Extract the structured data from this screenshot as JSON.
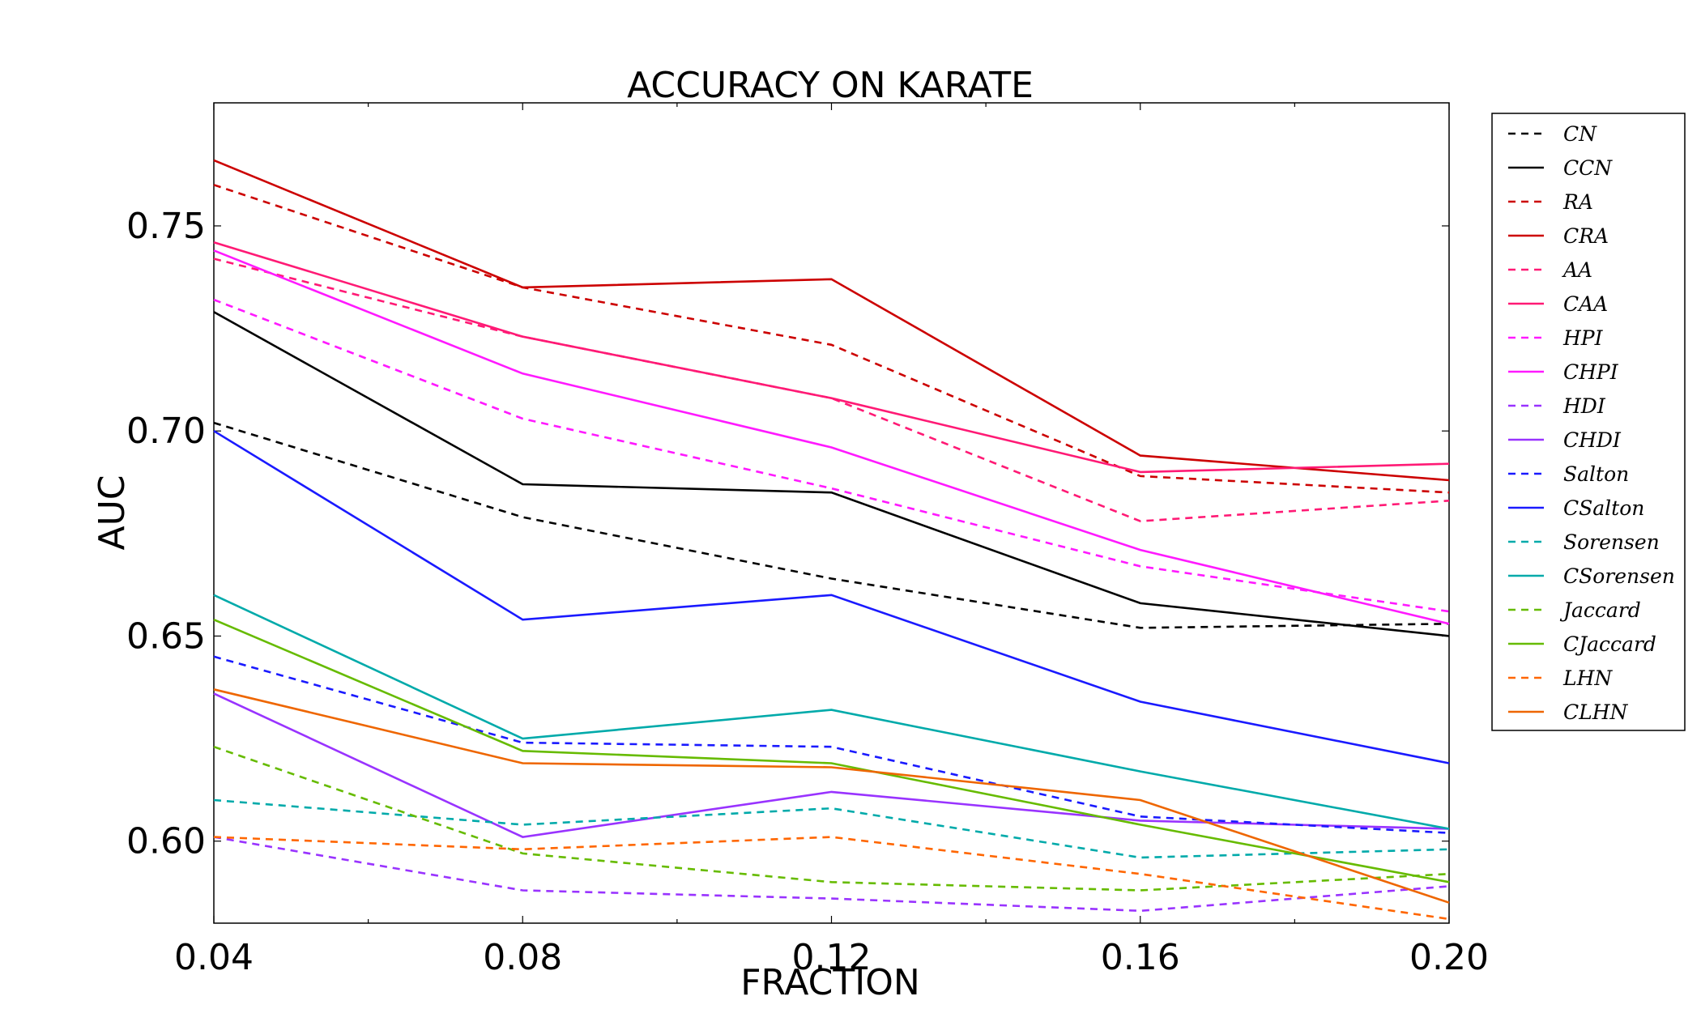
{
  "chart_data": {
    "type": "line",
    "title": "ACCURACY ON KARATE",
    "xlabel": "FRACTION",
    "ylabel": "AUC",
    "x": [
      0.04,
      0.08,
      0.12,
      0.16,
      0.2
    ],
    "x_tick_labels": [
      "0.04",
      "0.08",
      "0.12",
      "0.16",
      "0.20"
    ],
    "y_ticks": [
      0.6,
      0.65,
      0.7,
      0.75
    ],
    "y_tick_labels": [
      "0.60",
      "0.65",
      "0.70",
      "0.75"
    ],
    "xlim": [
      0.04,
      0.2
    ],
    "ylim": [
      0.58,
      0.78
    ],
    "grid": false,
    "legend_position": "outside-right",
    "series": [
      {
        "name": "CN",
        "color": "#000000",
        "dashed": true,
        "values": [
          0.702,
          0.679,
          0.664,
          0.652,
          0.653
        ]
      },
      {
        "name": "CCN",
        "color": "#000000",
        "dashed": false,
        "values": [
          0.729,
          0.687,
          0.685,
          0.658,
          0.65
        ]
      },
      {
        "name": "RA",
        "color": "#cc0000",
        "dashed": true,
        "values": [
          0.76,
          0.735,
          0.721,
          0.689,
          0.685
        ]
      },
      {
        "name": "CRA",
        "color": "#cc0000",
        "dashed": false,
        "values": [
          0.766,
          0.735,
          0.737,
          0.694,
          0.688
        ]
      },
      {
        "name": "AA",
        "color": "#ff1a75",
        "dashed": true,
        "values": [
          0.742,
          0.723,
          0.708,
          0.678,
          0.683
        ]
      },
      {
        "name": "CAA",
        "color": "#ff1a75",
        "dashed": false,
        "values": [
          0.746,
          0.723,
          0.708,
          0.69,
          0.692
        ]
      },
      {
        "name": "HPI",
        "color": "#ff1aff",
        "dashed": true,
        "values": [
          0.732,
          0.703,
          0.686,
          0.667,
          0.656
        ]
      },
      {
        "name": "CHPI",
        "color": "#ff1aff",
        "dashed": false,
        "values": [
          0.744,
          0.714,
          0.696,
          0.671,
          0.653
        ]
      },
      {
        "name": "HDI",
        "color": "#9933ff",
        "dashed": true,
        "values": [
          0.601,
          0.588,
          0.586,
          0.583,
          0.589
        ]
      },
      {
        "name": "CHDI",
        "color": "#9933ff",
        "dashed": false,
        "values": [
          0.636,
          0.601,
          0.612,
          0.605,
          0.603
        ]
      },
      {
        "name": "Salton",
        "color": "#1a1aff",
        "dashed": true,
        "values": [
          0.645,
          0.624,
          0.623,
          0.606,
          0.602
        ]
      },
      {
        "name": "CSalton",
        "color": "#1a1aff",
        "dashed": false,
        "values": [
          0.7,
          0.654,
          0.66,
          0.634,
          0.619
        ]
      },
      {
        "name": "Sorensen",
        "color": "#00aaaa",
        "dashed": true,
        "values": [
          0.61,
          0.604,
          0.608,
          0.596,
          0.598
        ]
      },
      {
        "name": "CSorensen",
        "color": "#00aaaa",
        "dashed": false,
        "values": [
          0.66,
          0.625,
          0.632,
          0.617,
          0.603
        ]
      },
      {
        "name": "Jaccard",
        "color": "#66bb00",
        "dashed": true,
        "values": [
          0.623,
          0.597,
          0.59,
          0.588,
          0.592
        ]
      },
      {
        "name": "CJaccard",
        "color": "#66bb00",
        "dashed": false,
        "values": [
          0.654,
          0.622,
          0.619,
          0.604,
          0.59
        ]
      },
      {
        "name": "LHN",
        "color": "#ff6600",
        "dashed": true,
        "values": [
          0.601,
          0.598,
          0.601,
          0.592,
          0.581
        ]
      },
      {
        "name": "CLHN",
        "color": "#ee6600",
        "dashed": false,
        "values": [
          0.637,
          0.619,
          0.618,
          0.61,
          0.585
        ]
      }
    ]
  }
}
